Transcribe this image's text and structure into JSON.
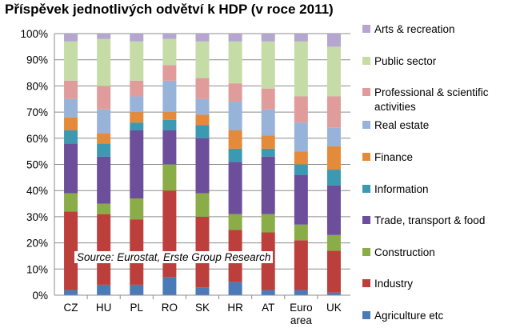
{
  "title": "Příspěvek jednotlivých odvětví k HDP (v roce 2011)",
  "source_note": "Source: Eurostat, Erste Group Research",
  "chart_data": {
    "type": "bar",
    "stacked": true,
    "percent": true,
    "title": "Příspěvek jednotlivých odvětví k HDP (v roce 2011)",
    "categories": [
      [
        "CZ"
      ],
      [
        "HU"
      ],
      [
        "PL"
      ],
      [
        "RO"
      ],
      [
        "SK"
      ],
      [
        "HR"
      ],
      [
        "AT"
      ],
      [
        "Euro",
        "area"
      ],
      [
        "UK"
      ]
    ],
    "ylim": [
      0,
      100
    ],
    "yticks": [
      "0%",
      "10%",
      "20%",
      "30%",
      "40%",
      "50%",
      "60%",
      "70%",
      "80%",
      "90%",
      "100%"
    ],
    "grid": true,
    "legend_position": "right",
    "series": [
      {
        "name": "Agriculture etc",
        "color": "#4a7ab8",
        "values": [
          2,
          4,
          4,
          7,
          3,
          5,
          2,
          2,
          1
        ]
      },
      {
        "name": "Industry",
        "color": "#bd3f3c",
        "values": [
          30,
          27,
          25,
          33,
          27,
          20,
          22,
          19,
          16
        ]
      },
      {
        "name": "Construction",
        "color": "#8aad47",
        "values": [
          7,
          4,
          8,
          10,
          9,
          6,
          7,
          6,
          6
        ]
      },
      {
        "name": "Trade, transport & food",
        "color": "#6c4e9a",
        "values": [
          19,
          18,
          26,
          13,
          21,
          20,
          22,
          19,
          19
        ]
      },
      {
        "name": "Information",
        "color": "#3b9ab2",
        "values": [
          5,
          5,
          3,
          4,
          5,
          5,
          3,
          4,
          6
        ]
      },
      {
        "name": "Finance",
        "color": "#e38b3a",
        "values": [
          5,
          4,
          4,
          3,
          4,
          7,
          5,
          5,
          9
        ]
      },
      {
        "name": "Real estate",
        "color": "#98b3d9",
        "values": [
          7,
          9,
          6,
          12,
          6,
          11,
          10,
          11,
          7
        ]
      },
      {
        "name": "Professional & scientific activities",
        "color": "#e09c9b",
        "values": [
          7,
          9,
          6,
          6,
          8,
          7,
          8,
          10,
          12
        ]
      },
      {
        "name": "Public sector",
        "color": "#c5dca6",
        "values": [
          15,
          18,
          15,
          10,
          14,
          16,
          18,
          21,
          19
        ]
      },
      {
        "name": "Arts & recreation",
        "color": "#b4a6cf",
        "values": [
          3,
          2,
          3,
          2,
          3,
          3,
          3,
          3,
          5
        ]
      }
    ],
    "legend_labels": [
      [
        "Arts & recreation"
      ],
      [
        "Public sector"
      ],
      [
        "Professional & scientific",
        "activities"
      ],
      [
        "Real estate"
      ],
      [
        "Finance"
      ],
      [
        "Information"
      ],
      [
        "Trade, transport & food"
      ],
      [
        "Construction"
      ],
      [
        "Industry"
      ],
      [
        "Agriculture etc"
      ]
    ]
  }
}
